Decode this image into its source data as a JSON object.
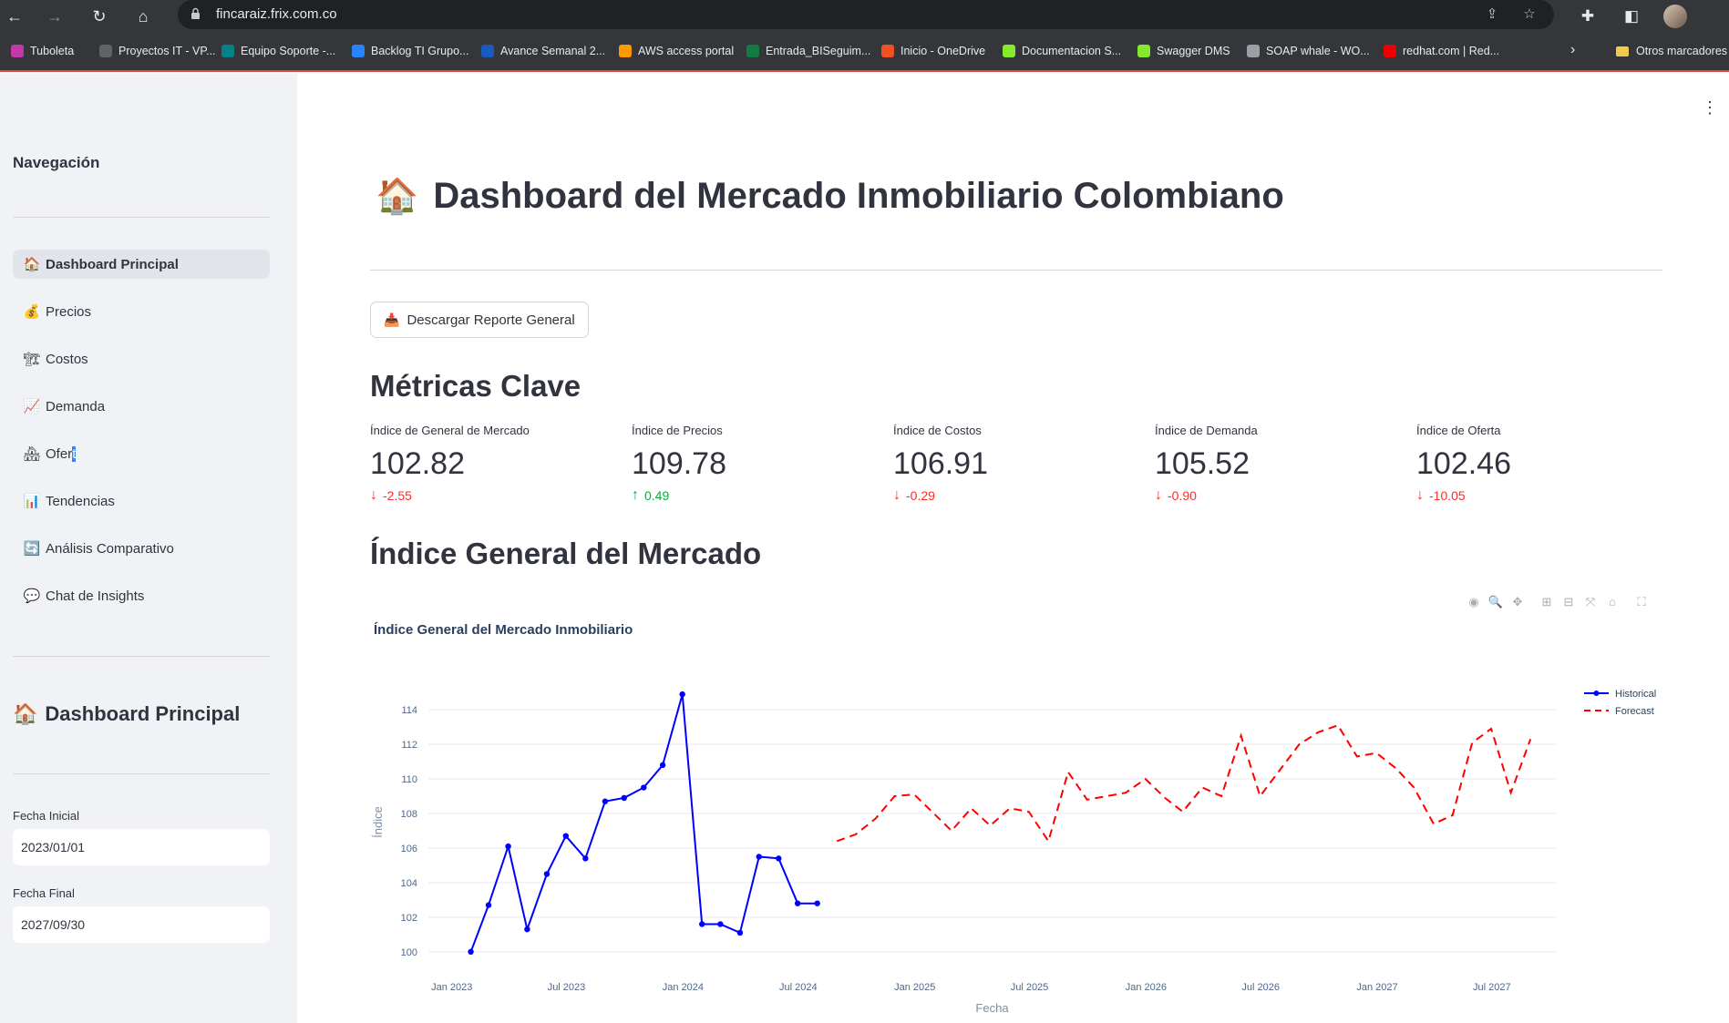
{
  "browser": {
    "url": "fincaraiz.frix.com.co",
    "bookmarks": [
      {
        "label": "Tuboleta",
        "color": "#c13aa7"
      },
      {
        "label": "Proyectos IT - VP...",
        "color": "#5f6368"
      },
      {
        "label": "Equipo Soporte -...",
        "color": "#038387"
      },
      {
        "label": "Backlog TI Grupo...",
        "color": "#2684ff"
      },
      {
        "label": "Avance Semanal 2...",
        "color": "#185abd"
      },
      {
        "label": "AWS access portal",
        "color": "#ff9900"
      },
      {
        "label": "Entrada_BISeguim...",
        "color": "#107c41"
      },
      {
        "label": "Inicio - OneDrive",
        "color": "#f25022"
      },
      {
        "label": "Documentacion S...",
        "color": "#85ea2d"
      },
      {
        "label": "Swagger DMS",
        "color": "#85ea2d"
      },
      {
        "label": "SOAP whale - WO...",
        "color": "#9aa0a6"
      },
      {
        "label": "redhat.com | Red...",
        "color": "#ee0000"
      }
    ],
    "other_bookmarks": "Otros marcadores"
  },
  "sidebar": {
    "heading": "Navegación",
    "items": [
      {
        "icon": "🏠",
        "label": "Dashboard Principal",
        "active": true
      },
      {
        "icon": "💰",
        "label": "Precios"
      },
      {
        "icon": "🏗",
        "label": "Costos"
      },
      {
        "icon": "📈",
        "label": "Demanda"
      },
      {
        "icon": "🏘",
        "label": "Oferta"
      },
      {
        "icon": "📊",
        "label": "Tendencias"
      },
      {
        "icon": "🔄",
        "label": "Análisis Comparativo"
      },
      {
        "icon": "💬",
        "label": "Chat de Insights"
      }
    ],
    "section_icon": "🏠",
    "section_title": "Dashboard Principal",
    "start_date_label": "Fecha Inicial",
    "start_date_value": "2023/01/01",
    "end_date_label": "Fecha Final",
    "end_date_value": "2027/09/30"
  },
  "main": {
    "title_icon": "🏠",
    "title": "Dashboard del Mercado Inmobiliario Colombiano",
    "download_icon": "📥",
    "download_label": "Descargar Reporte General",
    "metrics_title": "Métricas Clave",
    "metrics": [
      {
        "label": "Índice de General de Mercado",
        "value": "102.82",
        "delta": "-2.55",
        "direction": "down"
      },
      {
        "label": "Índice de Precios",
        "value": "109.78",
        "delta": "0.49",
        "direction": "up"
      },
      {
        "label": "Índice de Costos",
        "value": "106.91",
        "delta": "-0.29",
        "direction": "down"
      },
      {
        "label": "Índice de Demanda",
        "value": "105.52",
        "delta": "-0.90",
        "direction": "down"
      },
      {
        "label": "Índice de Oferta",
        "value": "102.46",
        "delta": "-10.05",
        "direction": "down"
      }
    ],
    "chart_section_title": "Índice General del Mercado"
  },
  "modebar_icons": [
    "camera-icon",
    "zoom-icon",
    "pan-icon",
    "zoom-in-icon",
    "zoom-out-icon",
    "autoscale-icon",
    "reset-axes-icon",
    "fullscreen-icon"
  ],
  "chart_data": {
    "type": "line",
    "title": "Índice General del Mercado Inmobiliario",
    "xlabel": "Fecha",
    "ylabel": "Índice",
    "ylim": [
      99.2,
      115.8
    ],
    "xlim": [
      "2022-11-25",
      "2027-10-10"
    ],
    "yticks": [
      100,
      102,
      104,
      106,
      108,
      110,
      112,
      114
    ],
    "xticks": [
      {
        "date": "2023-01-01",
        "label": "Jan 2023"
      },
      {
        "date": "2023-07-01",
        "label": "Jul 2023"
      },
      {
        "date": "2024-01-01",
        "label": "Jan 2024"
      },
      {
        "date": "2024-07-01",
        "label": "Jul 2024"
      },
      {
        "date": "2025-01-01",
        "label": "Jan 2025"
      },
      {
        "date": "2025-07-01",
        "label": "Jul 2025"
      },
      {
        "date": "2026-01-01",
        "label": "Jan 2026"
      },
      {
        "date": "2026-07-01",
        "label": "Jul 2026"
      },
      {
        "date": "2027-01-01",
        "label": "Jan 2027"
      },
      {
        "date": "2027-07-01",
        "label": "Jul 2027"
      }
    ],
    "grid": true,
    "legend_position": "top-right",
    "series": [
      {
        "name": "Historical",
        "color": "#0000ff",
        "style": "solid-markers",
        "x": [
          "2023-01-31",
          "2023-02-28",
          "2023-03-31",
          "2023-04-30",
          "2023-05-31",
          "2023-06-30",
          "2023-07-31",
          "2023-08-31",
          "2023-09-30",
          "2023-10-31",
          "2023-11-30",
          "2023-12-31",
          "2024-01-31",
          "2024-02-29",
          "2024-03-31",
          "2024-04-30",
          "2024-05-31",
          "2024-06-30",
          "2024-07-31"
        ],
        "y": [
          100.0,
          102.7,
          106.1,
          101.3,
          104.5,
          106.7,
          105.4,
          108.7,
          108.9,
          109.5,
          110.8,
          114.9,
          101.6,
          101.6,
          101.1,
          105.5,
          105.4,
          102.8,
          102.8
        ]
      },
      {
        "name": "Forecast",
        "color": "#ff0000",
        "style": "dash",
        "x": [
          "2024-08-31",
          "2024-09-30",
          "2024-10-31",
          "2024-11-30",
          "2024-12-31",
          "2025-01-31",
          "2025-02-28",
          "2025-03-31",
          "2025-04-30",
          "2025-05-31",
          "2025-06-30",
          "2025-07-31",
          "2025-08-31",
          "2025-09-30",
          "2025-10-31",
          "2025-11-30",
          "2025-12-31",
          "2026-01-31",
          "2026-02-28",
          "2026-03-31",
          "2026-04-30",
          "2026-05-31",
          "2026-06-30",
          "2026-07-31",
          "2026-08-31",
          "2026-09-30",
          "2026-10-31",
          "2026-11-30",
          "2026-12-31",
          "2027-01-31",
          "2027-02-28",
          "2027-03-31",
          "2027-04-30",
          "2027-05-31",
          "2027-06-30",
          "2027-07-31",
          "2027-08-31"
        ],
        "y": [
          106.4,
          106.8,
          107.7,
          109.0,
          109.1,
          108.0,
          107.0,
          108.3,
          107.3,
          108.3,
          108.1,
          106.4,
          110.4,
          108.8,
          109.0,
          109.2,
          110.0,
          108.9,
          108.1,
          109.5,
          109.0,
          112.5,
          109.0,
          110.5,
          112.0,
          112.7,
          113.1,
          111.3,
          111.5,
          110.6,
          109.5,
          107.4,
          107.9,
          112.1,
          112.9,
          109.2,
          112.3
        ]
      }
    ]
  }
}
